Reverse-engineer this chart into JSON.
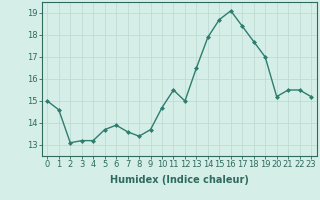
{
  "x": [
    0,
    1,
    2,
    3,
    4,
    5,
    6,
    7,
    8,
    9,
    10,
    11,
    12,
    13,
    14,
    15,
    16,
    17,
    18,
    19,
    20,
    21,
    22,
    23
  ],
  "y": [
    15.0,
    14.6,
    13.1,
    13.2,
    13.2,
    13.7,
    13.9,
    13.6,
    13.4,
    13.7,
    14.7,
    15.5,
    15.0,
    16.5,
    17.9,
    18.7,
    19.1,
    18.4,
    17.7,
    17.0,
    15.2,
    15.5,
    15.5,
    15.2
  ],
  "line_color": "#2e7d6e",
  "marker": "D",
  "marker_size": 2.0,
  "line_width": 1.0,
  "bg_color": "#d6eee8",
  "grid_color": "#c0dbd4",
  "xlabel": "Humidex (Indice chaleur)",
  "xlabel_fontsize": 7,
  "tick_fontsize": 6,
  "ylim": [
    12.5,
    19.5
  ],
  "xlim": [
    -0.5,
    23.5
  ],
  "yticks": [
    13,
    14,
    15,
    16,
    17,
    18,
    19
  ],
  "xticks": [
    0,
    1,
    2,
    3,
    4,
    5,
    6,
    7,
    8,
    9,
    10,
    11,
    12,
    13,
    14,
    15,
    16,
    17,
    18,
    19,
    20,
    21,
    22,
    23
  ]
}
